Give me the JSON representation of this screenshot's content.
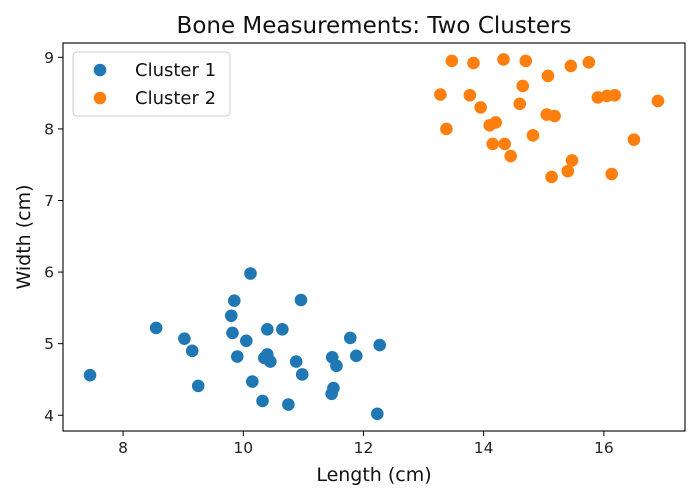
{
  "chart_data": {
    "type": "scatter",
    "title": "Bone Measurements: Two Clusters",
    "xlabel": "Length (cm)",
    "ylabel": "Width (cm)",
    "xlim": [
      7.0,
      17.35
    ],
    "ylim": [
      3.78,
      9.2
    ],
    "xticks": [
      8,
      10,
      12,
      14,
      16
    ],
    "yticks": [
      4,
      5,
      6,
      7,
      8,
      9
    ],
    "grid": false,
    "legend_position": "top-left",
    "series": [
      {
        "name": "Cluster 1",
        "color": "#1f77b4",
        "points": [
          [
            7.45,
            4.56
          ],
          [
            8.55,
            5.22
          ],
          [
            9.02,
            5.07
          ],
          [
            9.15,
            4.9
          ],
          [
            9.25,
            4.41
          ],
          [
            9.8,
            5.39
          ],
          [
            9.82,
            5.15
          ],
          [
            9.85,
            5.6
          ],
          [
            9.9,
            4.82
          ],
          [
            10.05,
            5.04
          ],
          [
            10.12,
            5.98
          ],
          [
            10.15,
            4.47
          ],
          [
            10.32,
            4.2
          ],
          [
            10.35,
            4.8
          ],
          [
            10.4,
            4.85
          ],
          [
            10.4,
            5.2
          ],
          [
            10.45,
            4.75
          ],
          [
            10.65,
            5.2
          ],
          [
            10.75,
            4.15
          ],
          [
            10.88,
            4.75
          ],
          [
            10.96,
            5.61
          ],
          [
            10.98,
            4.57
          ],
          [
            11.48,
            4.81
          ],
          [
            11.47,
            4.3
          ],
          [
            11.5,
            4.38
          ],
          [
            11.55,
            4.69
          ],
          [
            11.78,
            5.08
          ],
          [
            11.88,
            4.83
          ],
          [
            12.23,
            4.02
          ],
          [
            12.27,
            4.98
          ]
        ]
      },
      {
        "name": "Cluster 2",
        "color": "#ff7f0e",
        "points": [
          [
            13.28,
            8.48
          ],
          [
            13.38,
            8.0
          ],
          [
            13.47,
            8.95
          ],
          [
            13.77,
            8.47
          ],
          [
            13.83,
            8.92
          ],
          [
            13.95,
            8.3
          ],
          [
            14.1,
            8.05
          ],
          [
            14.15,
            7.79
          ],
          [
            14.2,
            8.09
          ],
          [
            14.33,
            8.97
          ],
          [
            14.35,
            7.79
          ],
          [
            14.45,
            7.62
          ],
          [
            14.6,
            8.35
          ],
          [
            14.65,
            8.6
          ],
          [
            14.7,
            8.95
          ],
          [
            14.82,
            7.91
          ],
          [
            15.05,
            8.2
          ],
          [
            15.07,
            8.74
          ],
          [
            15.13,
            7.33
          ],
          [
            15.18,
            8.18
          ],
          [
            15.4,
            7.41
          ],
          [
            15.45,
            8.88
          ],
          [
            15.47,
            7.56
          ],
          [
            15.75,
            8.93
          ],
          [
            15.9,
            8.44
          ],
          [
            16.05,
            8.46
          ],
          [
            16.13,
            7.37
          ],
          [
            16.18,
            8.47
          ],
          [
            16.5,
            7.85
          ],
          [
            16.9,
            8.39
          ]
        ]
      }
    ]
  },
  "colors": {
    "background": "#ffffff",
    "axes": "#000000"
  }
}
